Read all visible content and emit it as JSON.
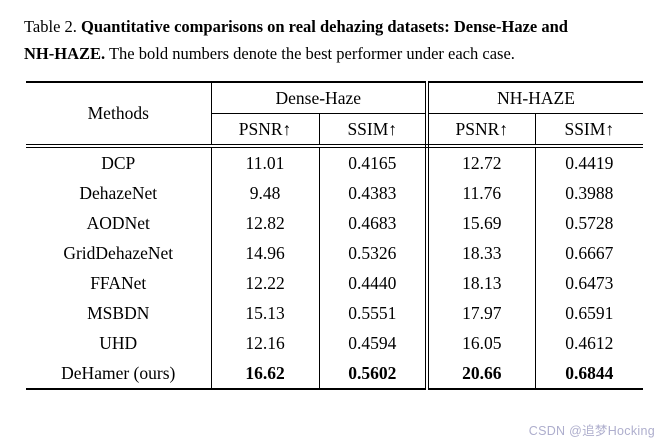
{
  "caption": {
    "label": "Table 2.",
    "bold_text": "Quantitative comparisons on real dehazing datasets: Dense-Haze and NH-HAZE.",
    "regular_text": "The bold numbers denote the best performer under each case."
  },
  "table": {
    "col_methods": "Methods",
    "groups": [
      {
        "label": "Dense-Haze",
        "cols": [
          "PSNR↑",
          "SSIM↑"
        ]
      },
      {
        "label": "NH-HAZE",
        "cols": [
          "PSNR↑",
          "SSIM↑"
        ]
      }
    ],
    "rows": [
      {
        "method": "DCP",
        "values": [
          "11.01",
          "0.4165",
          "12.72",
          "0.4419"
        ]
      },
      {
        "method": "DehazeNet",
        "values": [
          "9.48",
          "0.4383",
          "11.76",
          "0.3988"
        ]
      },
      {
        "method": "AODNet",
        "values": [
          "12.82",
          "0.4683",
          "15.69",
          "0.5728"
        ]
      },
      {
        "method": "GridDehazeNet",
        "values": [
          "14.96",
          "0.5326",
          "18.33",
          "0.6667"
        ]
      },
      {
        "method": "FFANet",
        "values": [
          "12.22",
          "0.4440",
          "18.13",
          "0.6473"
        ]
      },
      {
        "method": "MSBDN",
        "values": [
          "15.13",
          "0.5551",
          "17.97",
          "0.6591"
        ]
      },
      {
        "method": "UHD",
        "values": [
          "12.16",
          "0.4594",
          "16.05",
          "0.4612"
        ]
      },
      {
        "method": "DeHamer (ours)",
        "values": [
          "16.62",
          "0.5602",
          "20.66",
          "0.6844"
        ]
      }
    ]
  },
  "watermark": "CSDN @追梦Hocking",
  "chart_data": {
    "type": "table",
    "title": "Table 2. Quantitative comparisons on real dehazing datasets: Dense-Haze and NH-HAZE.",
    "columns": [
      "Methods",
      "Dense-Haze PSNR↑",
      "Dense-Haze SSIM↑",
      "NH-HAZE PSNR↑",
      "NH-HAZE SSIM↑"
    ],
    "rows": [
      [
        "DCP",
        11.01,
        0.4165,
        12.72,
        0.4419
      ],
      [
        "DehazeNet",
        9.48,
        0.4383,
        11.76,
        0.3988
      ],
      [
        "AODNet",
        12.82,
        0.4683,
        15.69,
        0.5728
      ],
      [
        "GridDehazeNet",
        14.96,
        0.5326,
        18.33,
        0.6667
      ],
      [
        "FFANet",
        12.22,
        0.444,
        18.13,
        0.6473
      ],
      [
        "MSBDN",
        15.13,
        0.5551,
        17.97,
        0.6591
      ],
      [
        "UHD",
        12.16,
        0.4594,
        16.05,
        0.4612
      ],
      [
        "DeHamer (ours)",
        16.62,
        0.5602,
        20.66,
        0.6844
      ]
    ],
    "bold_best_row": "DeHamer (ours)"
  }
}
